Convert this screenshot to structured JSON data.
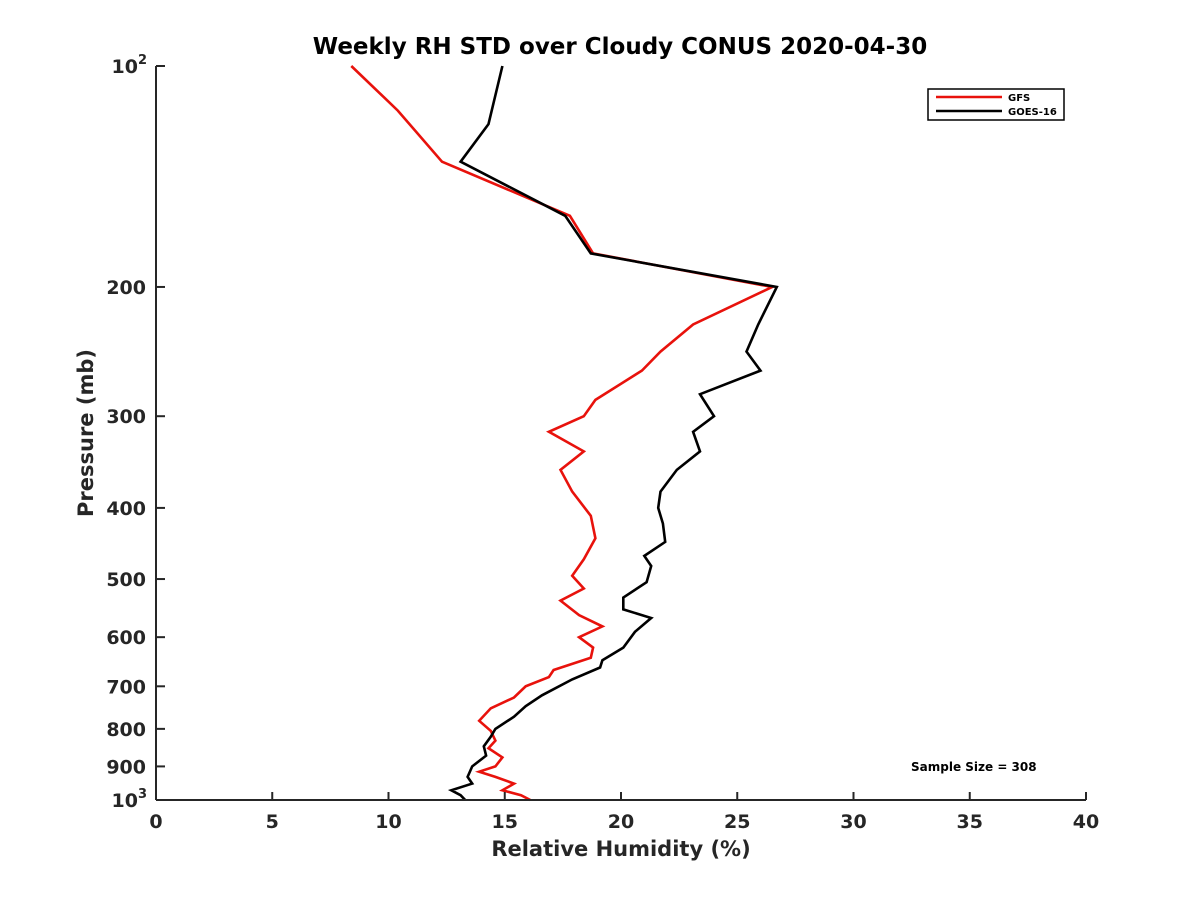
{
  "chart_data": {
    "type": "line",
    "title": "Weekly RH STD over Cloudy CONUS 2020-04-30",
    "xlabel": "Relative Humidity (%)",
    "ylabel": "Pressure (mb)",
    "xlim": [
      0,
      40
    ],
    "ylim": [
      100,
      1000
    ],
    "yscale": "log",
    "y_reversed": true,
    "grid": false,
    "legend_position": "top-right",
    "x_ticks": [
      {
        "value": 0,
        "label": "0"
      },
      {
        "value": 5,
        "label": "5"
      },
      {
        "value": 10,
        "label": "10"
      },
      {
        "value": 15,
        "label": "15"
      },
      {
        "value": 20,
        "label": "20"
      },
      {
        "value": 25,
        "label": "25"
      },
      {
        "value": 30,
        "label": "30"
      },
      {
        "value": 35,
        "label": "35"
      },
      {
        "value": 40,
        "label": "40"
      }
    ],
    "y_ticks": [
      {
        "value": 100,
        "base": "10",
        "exp": "2"
      },
      {
        "value": 200,
        "label": "200"
      },
      {
        "value": 300,
        "label": "300"
      },
      {
        "value": 400,
        "label": "400"
      },
      {
        "value": 500,
        "label": "500"
      },
      {
        "value": 600,
        "label": "600"
      },
      {
        "value": 700,
        "label": "700"
      },
      {
        "value": 800,
        "label": "800"
      },
      {
        "value": 900,
        "label": "900"
      },
      {
        "value": 1000,
        "base": "10",
        "exp": "3"
      }
    ],
    "series": [
      {
        "name": "GFS",
        "color": "#e8120c",
        "points": [
          [
            8.4,
            100
          ],
          [
            10.4,
            115
          ],
          [
            12.3,
            135
          ],
          [
            17.8,
            160
          ],
          [
            18.8,
            180
          ],
          [
            26.5,
            200
          ],
          [
            23.1,
            225
          ],
          [
            21.7,
            245
          ],
          [
            20.9,
            260
          ],
          [
            18.9,
            285
          ],
          [
            18.4,
            300
          ],
          [
            16.9,
            315
          ],
          [
            18.4,
            335
          ],
          [
            17.4,
            355
          ],
          [
            17.9,
            380
          ],
          [
            18.7,
            410
          ],
          [
            18.9,
            440
          ],
          [
            18.4,
            470
          ],
          [
            17.9,
            495
          ],
          [
            18.4,
            515
          ],
          [
            17.4,
            535
          ],
          [
            18.2,
            560
          ],
          [
            19.2,
            580
          ],
          [
            18.2,
            600
          ],
          [
            18.8,
            620
          ],
          [
            18.7,
            640
          ],
          [
            17.1,
            665
          ],
          [
            16.9,
            680
          ],
          [
            15.9,
            700
          ],
          [
            15.4,
            725
          ],
          [
            14.4,
            750
          ],
          [
            13.9,
            780
          ],
          [
            14.4,
            805
          ],
          [
            14.6,
            830
          ],
          [
            14.3,
            850
          ],
          [
            14.9,
            875
          ],
          [
            14.6,
            900
          ],
          [
            13.9,
            915
          ],
          [
            14.6,
            930
          ],
          [
            15.4,
            950
          ],
          [
            14.9,
            970
          ],
          [
            15.7,
            985
          ],
          [
            16.1,
            1000
          ]
        ]
      },
      {
        "name": "GOES-16",
        "color": "#000000",
        "points": [
          [
            14.9,
            100
          ],
          [
            14.3,
            120
          ],
          [
            13.1,
            135
          ],
          [
            17.6,
            160
          ],
          [
            18.7,
            180
          ],
          [
            26.7,
            200
          ],
          [
            25.9,
            225
          ],
          [
            25.4,
            245
          ],
          [
            26.0,
            260
          ],
          [
            23.4,
            280
          ],
          [
            24.0,
            300
          ],
          [
            23.1,
            315
          ],
          [
            23.4,
            335
          ],
          [
            22.4,
            355
          ],
          [
            21.7,
            380
          ],
          [
            21.6,
            400
          ],
          [
            21.8,
            420
          ],
          [
            21.9,
            445
          ],
          [
            21.0,
            465
          ],
          [
            21.3,
            480
          ],
          [
            21.1,
            505
          ],
          [
            20.1,
            530
          ],
          [
            20.1,
            550
          ],
          [
            21.3,
            565
          ],
          [
            20.6,
            590
          ],
          [
            20.1,
            620
          ],
          [
            19.2,
            645
          ],
          [
            19.1,
            660
          ],
          [
            17.9,
            685
          ],
          [
            16.6,
            720
          ],
          [
            15.9,
            745
          ],
          [
            15.4,
            770
          ],
          [
            14.6,
            800
          ],
          [
            14.4,
            820
          ],
          [
            14.1,
            845
          ],
          [
            14.2,
            870
          ],
          [
            13.6,
            900
          ],
          [
            13.4,
            930
          ],
          [
            13.6,
            950
          ],
          [
            12.7,
            970
          ],
          [
            13.1,
            985
          ],
          [
            13.3,
            1000
          ]
        ]
      }
    ],
    "annotations": [
      {
        "text": "Sample Size = 308"
      }
    ]
  }
}
